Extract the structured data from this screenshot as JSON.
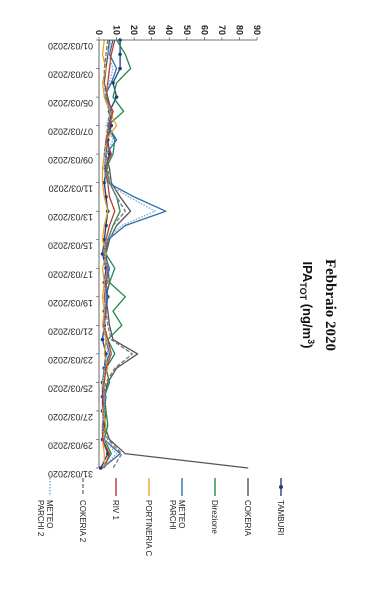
{
  "chart_data": {
    "type": "line",
    "title": "Febbraio 2020",
    "subtitle": "IPA_TOT (ng/m³)",
    "ylim": [
      0,
      90
    ],
    "y_ticks": [
      0,
      10,
      20,
      30,
      40,
      50,
      60,
      70,
      80,
      90
    ],
    "x_tick_labels": [
      "01/03/2020",
      "03/03/2020",
      "05/03/2020",
      "07/03/2020",
      "09/03/2020",
      "11/03/2020",
      "13/03/2020",
      "15/03/2020",
      "17/03/2020",
      "19/03/2020",
      "21/03/2020",
      "23/03/2020",
      "25/03/2020",
      "27/03/2020",
      "29/03/2020",
      "31/03/2020"
    ],
    "x": [
      "01/03/2020",
      "02/03/2020",
      "03/03/2020",
      "04/03/2020",
      "05/03/2020",
      "06/03/2020",
      "07/03/2020",
      "08/03/2020",
      "09/03/2020",
      "10/03/2020",
      "11/03/2020",
      "12/03/2020",
      "13/03/2020",
      "14/03/2020",
      "15/03/2020",
      "16/03/2020",
      "17/03/2020",
      "18/03/2020",
      "19/03/2020",
      "20/03/2020",
      "21/03/2020",
      "22/03/2020",
      "23/03/2020",
      "24/03/2020",
      "25/03/2020",
      "26/03/2020",
      "27/03/2020",
      "28/03/2020",
      "29/03/2020",
      "30/03/2020",
      "31/03/2020"
    ],
    "grid": false,
    "legend_placement": "right",
    "series": [
      {
        "name": "TAMBURI",
        "color": "#1f3f7a",
        "dash": "solid",
        "markers": true,
        "values": [
          12,
          12,
          12,
          8,
          10,
          6,
          7,
          5,
          6,
          4,
          3,
          4,
          5,
          4,
          3,
          2,
          4,
          3,
          5,
          3,
          3,
          2,
          4,
          3,
          2,
          2,
          2,
          3,
          2,
          5,
          1
        ]
      },
      {
        "name": "COKERIA",
        "color": "#555555",
        "dash": "solid",
        "markers": false,
        "values": [
          6,
          5,
          4,
          3,
          5,
          7,
          6,
          5,
          4,
          6,
          7,
          12,
          18,
          10,
          6,
          4,
          5,
          6,
          4,
          5,
          6,
          8,
          22,
          10,
          5,
          3,
          4,
          3,
          6,
          15,
          85
        ]
      },
      {
        "name": "Direzione",
        "color": "#1f8a4c",
        "dash": "solid",
        "markers": false,
        "values": [
          10,
          15,
          18,
          10,
          8,
          14,
          5,
          9,
          8,
          4,
          6,
          10,
          12,
          8,
          5,
          4,
          9,
          6,
          15,
          8,
          13,
          5,
          9,
          4,
          6,
          3,
          4,
          5,
          3,
          7,
          2
        ]
      },
      {
        "name": "METEO PARCHI",
        "color": "#2a6fb0",
        "dash": "solid",
        "markers": false,
        "values": [
          8,
          6,
          10,
          7,
          3,
          8,
          5,
          10,
          4,
          3,
          5,
          20,
          38,
          15,
          5,
          3,
          6,
          4,
          5,
          4,
          3,
          4,
          6,
          3,
          2,
          4,
          3,
          2,
          3,
          12,
          2
        ]
      },
      {
        "name": "PORTINERIA C",
        "color": "#e8a22a",
        "dash": "solid",
        "markers": false,
        "values": [
          3,
          2,
          4,
          2,
          3,
          6,
          10,
          4,
          3,
          2,
          2,
          3,
          5,
          3,
          2,
          4,
          2,
          3,
          2,
          3,
          2,
          4,
          3,
          5,
          2,
          3,
          2,
          4,
          2,
          3,
          3
        ]
      },
      {
        "name": "RIV 1",
        "color": "#c0392b",
        "dash": "solid",
        "markers": false,
        "values": [
          9,
          7,
          6,
          5,
          4,
          8,
          6,
          4,
          7,
          3,
          5,
          6,
          9,
          6,
          4,
          3,
          5,
          4,
          3,
          4,
          3,
          5,
          7,
          4,
          3,
          2,
          3,
          2,
          2,
          6,
          3
        ]
      },
      {
        "name": "COKERIA 2",
        "color": "#777777",
        "dash": "dashed",
        "markers": false,
        "values": [
          5,
          4,
          3,
          3,
          4,
          6,
          5,
          4,
          3,
          5,
          6,
          10,
          15,
          8,
          5,
          3,
          4,
          5,
          3,
          4,
          5,
          7,
          19,
          9,
          4,
          3,
          3,
          2,
          5,
          13,
          8
        ]
      },
      {
        "name": "METEO PARCHI 2",
        "color": "#7fa8cc",
        "dash": "dotted",
        "markers": false,
        "values": [
          7,
          5,
          8,
          6,
          3,
          7,
          4,
          8,
          4,
          3,
          4,
          17,
          32,
          13,
          4,
          3,
          5,
          3,
          4,
          3,
          3,
          4,
          5,
          3,
          2,
          3,
          3,
          2,
          3,
          10,
          2
        ]
      }
    ]
  }
}
